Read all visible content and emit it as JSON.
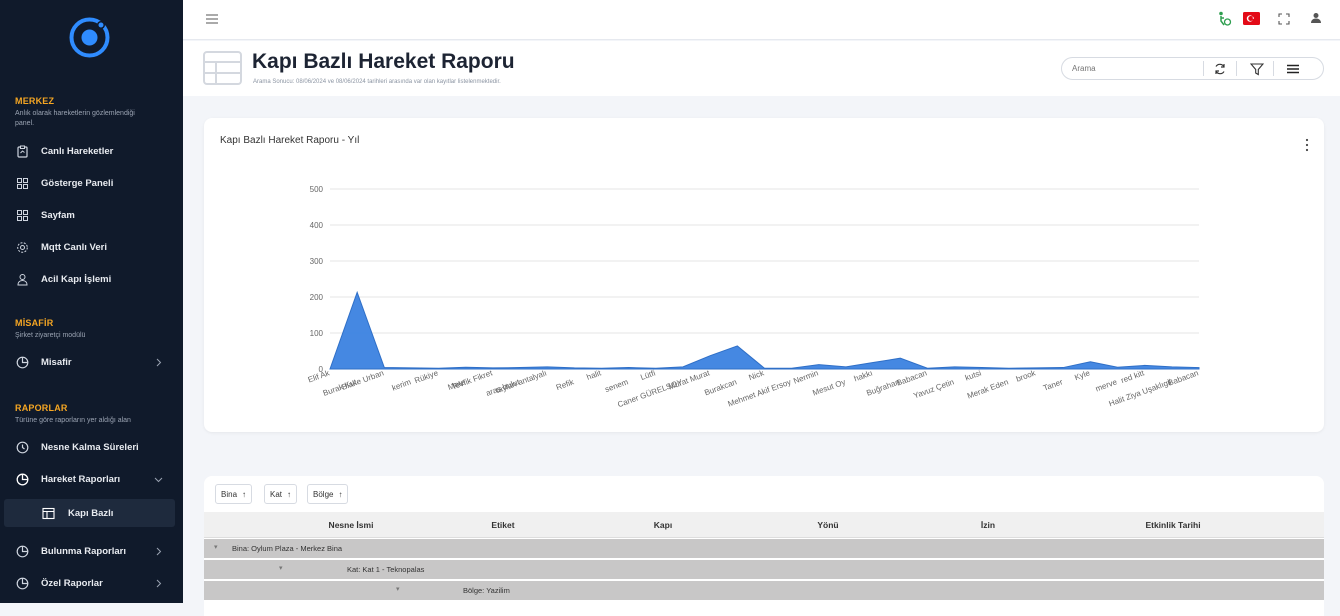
{
  "sidebar": {
    "sections": [
      {
        "title": "MERKEZ",
        "desc": "Anlık olarak hareketlerin gözlemlendiği panel."
      },
      {
        "title": "MİSAFİR",
        "desc": "Şirket ziyaretçi modülü"
      },
      {
        "title": "RAPORLAR",
        "desc": "Türüne göre raporların yer aldığı alan"
      }
    ],
    "items": [
      {
        "label": "Canlı Hareketler"
      },
      {
        "label": "Gösterge Paneli"
      },
      {
        "label": "Sayfam"
      },
      {
        "label": "Mqtt Canlı Veri"
      },
      {
        "label": "Acil Kapı İşlemi"
      },
      {
        "label": "Misafir"
      },
      {
        "label": "Nesne Kalma Süreleri"
      },
      {
        "label": "Hareket Raporları"
      },
      {
        "label": "Kapı Bazlı"
      },
      {
        "label": "Bulunma Raporları"
      },
      {
        "label": "Özel Raporlar"
      }
    ]
  },
  "header": {
    "title": "Kapı Bazlı Hareket Raporu",
    "subtitle": "Arama Sonucu: 08/06/2024 ve 08/06/2024 tarihleri arasında var olan kayıtlar listelenmektedir.",
    "search_placeholder": "Arama"
  },
  "chart_card": {
    "title": "Kapı Bazlı Hareket Raporu - Yıl"
  },
  "chart_data": {
    "type": "area",
    "title": "Kapı Bazlı Hareket Raporu - Yıl",
    "ylim": [
      0,
      500
    ],
    "yticks": [
      0,
      100,
      200,
      300,
      400,
      500
    ],
    "grid": true,
    "color": "#3b82e0",
    "categories": [
      "Elif Ak",
      "Burak Kut",
      "Blake Urban",
      "kerim",
      "Rükiye",
      "Mete",
      "Tevfik Fikret",
      "aras bulut",
      "taylan antalyalı",
      "Refik",
      "halit",
      "senem",
      "Lütfi",
      "Caner GÜRELSOY",
      "Murat Murat",
      "Burakcan",
      "Nick",
      "Mehmet Akif Ersoy",
      "Nermin",
      "Mesut Oy",
      "hakkı",
      "Buğrahan",
      "Babacan",
      "Yavuz Çetin",
      "kutsi",
      "Merak Eden",
      "brook",
      "Taner",
      "Kyle",
      "merve",
      "red kitt",
      "Halit Ziya Uşaklıgil",
      "Babacan"
    ],
    "values": [
      0,
      213,
      4,
      3,
      2,
      5,
      3,
      4,
      6,
      3,
      2,
      4,
      2,
      6,
      37,
      64,
      2,
      2,
      12,
      6,
      18,
      30,
      2,
      6,
      4,
      2,
      3,
      4,
      20,
      5,
      10,
      6,
      4
    ]
  },
  "grid": {
    "group_chips": [
      "Bina",
      "Kat",
      "Bölge"
    ],
    "columns": [
      "Nesne İsmi",
      "Etiket",
      "Kapı",
      "Yönü",
      "İzin",
      "Etkinlik Tarihi"
    ],
    "group_rows": [
      {
        "label": "Bina: Oylum Plaza - Merkez Bina"
      },
      {
        "label": "Kat: Kat 1 - Teknopalas"
      },
      {
        "label": "Bölge: Yazilim"
      }
    ]
  }
}
